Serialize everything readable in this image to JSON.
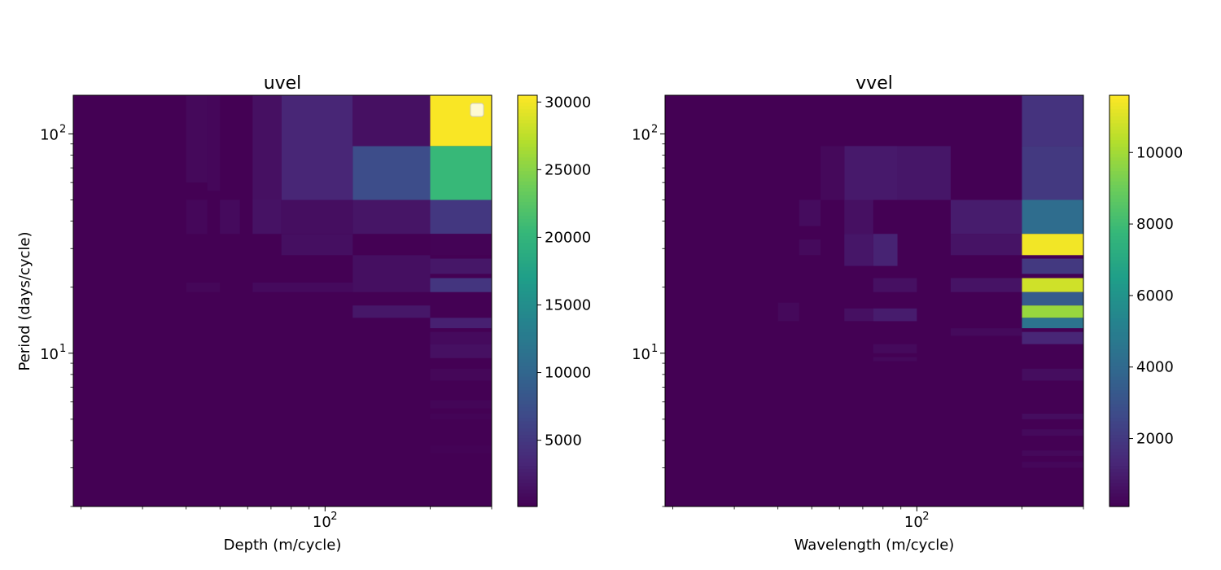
{
  "chart_data": [
    {
      "type": "heatmap",
      "title": "uvel",
      "xlabel": "Depth (m/cycle)",
      "ylabel": "Period (days/cycle)",
      "x_scale": "log",
      "y_scale": "log",
      "xlim": [
        19,
        300
      ],
      "ylim": [
        2.0,
        150
      ],
      "x_major_ticks": [
        {
          "value": 100,
          "base": "10",
          "exp": "2"
        }
      ],
      "y_major_ticks": [
        {
          "value": 10,
          "base": "10",
          "exp": "1"
        },
        {
          "value": 100,
          "base": "10",
          "exp": "2"
        }
      ],
      "legend": "empty, top-right",
      "colormap": "viridis",
      "colorbar": {
        "min": 100,
        "max": 30500,
        "ticks": [
          5000,
          10000,
          15000,
          20000,
          25000,
          30000
        ]
      },
      "cells": [
        {
          "x": [
            200,
            300
          ],
          "y": [
            88,
            150
          ],
          "v": 30300
        },
        {
          "x": [
            200,
            300
          ],
          "y": [
            50,
            88
          ],
          "v": 20500
        },
        {
          "x": [
            120,
            200
          ],
          "y": [
            50,
            88
          ],
          "v": 7200
        },
        {
          "x": [
            75,
            120
          ],
          "y": [
            50,
            150
          ],
          "v": 3300
        },
        {
          "x": [
            120,
            200
          ],
          "y": [
            88,
            150
          ],
          "v": 1400
        },
        {
          "x": [
            200,
            300
          ],
          "y": [
            35,
            50
          ],
          "v": 5000
        },
        {
          "x": [
            120,
            200
          ],
          "y": [
            35,
            50
          ],
          "v": 1800
        },
        {
          "x": [
            75,
            120
          ],
          "y": [
            35,
            50
          ],
          "v": 1200
        },
        {
          "x": [
            62,
            75
          ],
          "y": [
            35,
            50
          ],
          "v": 1600
        },
        {
          "x": [
            62,
            75
          ],
          "y": [
            50,
            150
          ],
          "v": 1400
        },
        {
          "x": [
            50,
            57
          ],
          "y": [
            35,
            50
          ],
          "v": 900
        },
        {
          "x": [
            40,
            46
          ],
          "y": [
            60,
            150
          ],
          "v": 800
        },
        {
          "x": [
            46,
            50
          ],
          "y": [
            55,
            150
          ],
          "v": 650
        },
        {
          "x": [
            40,
            46
          ],
          "y": [
            35,
            50
          ],
          "v": 650
        },
        {
          "x": [
            200,
            300
          ],
          "y": [
            28,
            35
          ],
          "v": 300
        },
        {
          "x": [
            200,
            300
          ],
          "y": [
            23,
            27
          ],
          "v": 2000
        },
        {
          "x": [
            200,
            300
          ],
          "y": [
            19,
            22
          ],
          "v": 4800
        },
        {
          "x": [
            120,
            200
          ],
          "y": [
            19,
            28
          ],
          "v": 1300
        },
        {
          "x": [
            75,
            120
          ],
          "y": [
            28,
            35
          ],
          "v": 1300
        },
        {
          "x": [
            62,
            120
          ],
          "y": [
            19,
            21
          ],
          "v": 900
        },
        {
          "x": [
            40,
            50
          ],
          "y": [
            19,
            21
          ],
          "v": 600
        },
        {
          "x": [
            120,
            200
          ],
          "y": [
            14.5,
            16.5
          ],
          "v": 2000
        },
        {
          "x": [
            200,
            300
          ],
          "y": [
            13,
            14.5
          ],
          "v": 2800
        },
        {
          "x": [
            200,
            300
          ],
          "y": [
            9.5,
            11
          ],
          "v": 1400
        },
        {
          "x": [
            200,
            300
          ],
          "y": [
            11,
            12.5
          ],
          "v": 900
        },
        {
          "x": [
            200,
            300
          ],
          "y": [
            7.5,
            8.5
          ],
          "v": 600
        },
        {
          "x": [
            200,
            300
          ],
          "y": [
            5.6,
            6.1
          ],
          "v": 500
        },
        {
          "x": [
            200,
            300
          ],
          "y": [
            5.0,
            5.3
          ],
          "v": 400
        },
        {
          "x": [
            200,
            300
          ],
          "y": [
            3.5,
            3.8
          ],
          "v": 300
        }
      ]
    },
    {
      "type": "heatmap",
      "title": "vvel",
      "xlabel": "Wavelength (m/cycle)",
      "ylabel": "",
      "x_scale": "log",
      "y_scale": "log",
      "xlim": [
        19,
        300
      ],
      "ylim": [
        2.0,
        150
      ],
      "x_major_ticks": [
        {
          "value": 100,
          "base": "10",
          "exp": "2"
        }
      ],
      "y_major_ticks": [
        {
          "value": 10,
          "base": "10",
          "exp": "1"
        },
        {
          "value": 100,
          "base": "10",
          "exp": "2"
        }
      ],
      "colormap": "viridis",
      "colorbar": {
        "min": 100,
        "max": 11600,
        "ticks": [
          2000,
          4000,
          6000,
          8000,
          10000
        ]
      },
      "cells": [
        {
          "x": [
            200,
            300
          ],
          "y": [
            88,
            150
          ],
          "v": 1800
        },
        {
          "x": [
            200,
            300
          ],
          "y": [
            50,
            88
          ],
          "v": 2000
        },
        {
          "x": [
            200,
            300
          ],
          "y": [
            35,
            50
          ],
          "v": 4200
        },
        {
          "x": [
            200,
            300
          ],
          "y": [
            28,
            35
          ],
          "v": 11400
        },
        {
          "x": [
            200,
            300
          ],
          "y": [
            23,
            27
          ],
          "v": 2000
        },
        {
          "x": [
            200,
            300
          ],
          "y": [
            19,
            22
          ],
          "v": 10800
        },
        {
          "x": [
            200,
            300
          ],
          "y": [
            16.5,
            19
          ],
          "v": 3400
        },
        {
          "x": [
            200,
            300
          ],
          "y": [
            14.5,
            16.5
          ],
          "v": 9800
        },
        {
          "x": [
            200,
            300
          ],
          "y": [
            13,
            14.5
          ],
          "v": 4500
        },
        {
          "x": [
            200,
            300
          ],
          "y": [
            11,
            12.5
          ],
          "v": 1300
        },
        {
          "x": [
            200,
            300
          ],
          "y": [
            7.5,
            8.5
          ],
          "v": 500
        },
        {
          "x": [
            200,
            300
          ],
          "y": [
            5.0,
            5.3
          ],
          "v": 500
        },
        {
          "x": [
            200,
            300
          ],
          "y": [
            4.2,
            4.5
          ],
          "v": 400
        },
        {
          "x": [
            200,
            300
          ],
          "y": [
            3.4,
            3.6
          ],
          "v": 350
        },
        {
          "x": [
            200,
            300
          ],
          "y": [
            3.0,
            3.2
          ],
          "v": 300
        },
        {
          "x": [
            125,
            200
          ],
          "y": [
            35,
            50
          ],
          "v": 1000
        },
        {
          "x": [
            125,
            200
          ],
          "y": [
            28,
            35
          ],
          "v": 700
        },
        {
          "x": [
            125,
            200
          ],
          "y": [
            19,
            22
          ],
          "v": 700
        },
        {
          "x": [
            125,
            200
          ],
          "y": [
            12,
            13
          ],
          "v": 400
        },
        {
          "x": [
            62,
            88
          ],
          "y": [
            50,
            88
          ],
          "v": 900
        },
        {
          "x": [
            88,
            125
          ],
          "y": [
            50,
            88
          ],
          "v": 800
        },
        {
          "x": [
            75,
            88
          ],
          "y": [
            25,
            35
          ],
          "v": 1200
        },
        {
          "x": [
            62,
            75
          ],
          "y": [
            25,
            35
          ],
          "v": 800
        },
        {
          "x": [
            75,
            100
          ],
          "y": [
            14,
            16
          ],
          "v": 1000
        },
        {
          "x": [
            62,
            75
          ],
          "y": [
            14,
            16
          ],
          "v": 600
        },
        {
          "x": [
            75,
            100
          ],
          "y": [
            19,
            22
          ],
          "v": 600
        },
        {
          "x": [
            75,
            100
          ],
          "y": [
            10,
            11
          ],
          "v": 400
        },
        {
          "x": [
            75,
            100
          ],
          "y": [
            9.2,
            9.6
          ],
          "v": 350
        },
        {
          "x": [
            62,
            75
          ],
          "y": [
            35,
            50
          ],
          "v": 600
        },
        {
          "x": [
            46,
            53
          ],
          "y": [
            38,
            50
          ],
          "v": 450
        },
        {
          "x": [
            53,
            62
          ],
          "y": [
            50,
            88
          ],
          "v": 350
        },
        {
          "x": [
            46,
            53
          ],
          "y": [
            28,
            33
          ],
          "v": 400
        },
        {
          "x": [
            40,
            46
          ],
          "y": [
            14,
            17
          ],
          "v": 350
        }
      ]
    }
  ]
}
